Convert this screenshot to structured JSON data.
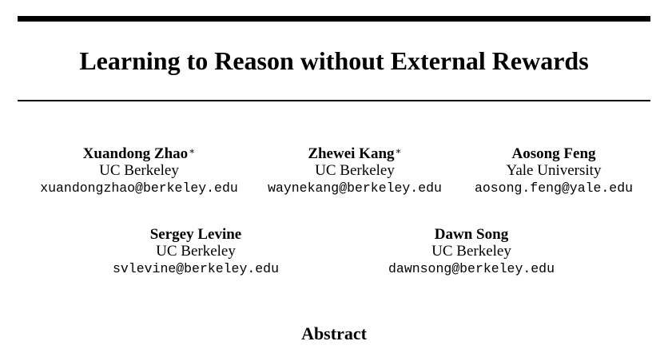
{
  "paper": {
    "title": "Learning to Reason without External Rewards",
    "authors": [
      {
        "name": "Xuandong Zhao",
        "mark": "∗",
        "affiliation": "UC Berkeley",
        "email": "xuandongzhao@berkeley.edu"
      },
      {
        "name": "Zhewei Kang",
        "mark": "∗",
        "affiliation": "UC Berkeley",
        "email": "waynekang@berkeley.edu"
      },
      {
        "name": "Aosong Feng",
        "mark": "",
        "affiliation": "Yale University",
        "email": "aosong.feng@yale.edu"
      },
      {
        "name": "Sergey Levine",
        "mark": "",
        "affiliation": "UC Berkeley",
        "email": "svlevine@berkeley.edu"
      },
      {
        "name": "Dawn Song",
        "mark": "",
        "affiliation": "UC Berkeley",
        "email": "dawnsong@berkeley.edu"
      }
    ],
    "abstract_heading": "Abstract"
  }
}
